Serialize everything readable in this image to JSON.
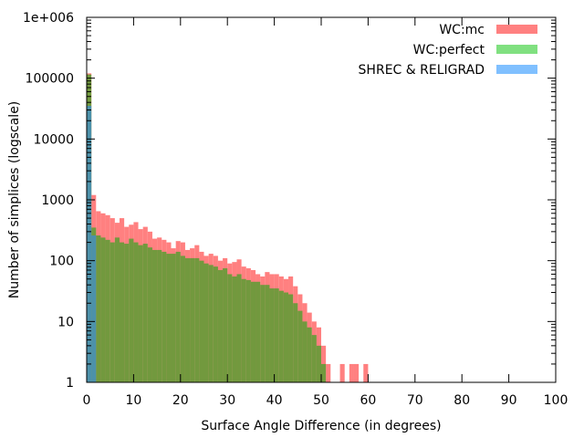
{
  "chart_data": {
    "type": "bar",
    "xlabel": "Surface Angle Difference (in degrees)",
    "ylabel": "Number of simplices (logscale)",
    "xlim": [
      0,
      100
    ],
    "ylim": [
      1,
      1000000
    ],
    "y_scale": "log",
    "x_ticks": [
      "0",
      "10",
      "20",
      "30",
      "40",
      "50",
      "60",
      "70",
      "80",
      "90",
      "100"
    ],
    "y_ticks": [
      "1",
      "10",
      "100",
      "1000",
      "10000",
      "100000",
      "1e+006"
    ],
    "legend_position": "top-right",
    "bin_width_degrees": 1,
    "bin_starts": [
      0,
      1,
      2,
      3,
      4,
      5,
      6,
      7,
      8,
      9,
      10,
      11,
      12,
      13,
      14,
      15,
      16,
      17,
      18,
      19,
      20,
      21,
      22,
      23,
      24,
      25,
      26,
      27,
      28,
      29,
      30,
      31,
      32,
      33,
      34,
      35,
      36,
      37,
      38,
      39,
      40,
      41,
      42,
      43,
      44,
      45,
      46,
      47,
      48,
      49,
      50,
      51,
      52,
      53,
      54,
      55,
      56,
      57,
      58,
      59,
      60,
      61,
      62,
      63,
      64,
      65,
      66,
      67,
      68,
      69,
      70,
      71
    ],
    "series": [
      {
        "name": "WC:mc",
        "color": "#ff8080",
        "values": [
          120000,
          1200,
          650,
          600,
          560,
          500,
          420,
          500,
          360,
          390,
          430,
          330,
          360,
          300,
          230,
          240,
          220,
          200,
          160,
          210,
          200,
          150,
          160,
          180,
          140,
          120,
          130,
          120,
          100,
          110,
          90,
          95,
          105,
          80,
          75,
          70,
          60,
          55,
          65,
          60,
          60,
          55,
          50,
          55,
          38,
          28,
          20,
          14,
          10,
          8,
          4,
          2,
          1,
          1,
          2,
          0,
          2,
          2,
          0,
          2,
          0,
          1,
          0,
          0,
          0,
          1,
          1,
          0,
          0,
          0,
          0,
          1
        ]
      },
      {
        "name": "WC:perfect",
        "color": "#80e080",
        "values": [
          115000,
          350,
          260,
          240,
          220,
          200,
          240,
          200,
          190,
          230,
          200,
          180,
          190,
          165,
          150,
          150,
          140,
          130,
          130,
          140,
          120,
          110,
          110,
          110,
          100,
          90,
          85,
          80,
          70,
          75,
          60,
          55,
          60,
          50,
          48,
          45,
          45,
          40,
          40,
          35,
          35,
          32,
          30,
          28,
          20,
          15,
          10,
          8,
          6,
          4,
          2,
          1,
          1,
          0,
          0,
          0,
          0,
          0,
          0,
          0,
          0,
          0,
          0,
          0,
          0,
          0,
          0,
          0,
          0,
          0,
          0,
          0
        ]
      },
      {
        "name": "SHREC & RELIGRAD",
        "color": "#80c0ff",
        "values": [
          35000,
          260,
          0,
          0,
          0,
          0,
          0,
          0,
          0,
          0,
          0,
          0,
          0,
          0,
          0,
          0,
          0,
          0,
          0,
          0,
          0,
          0,
          0,
          0,
          0,
          0,
          0,
          0,
          0,
          0,
          0,
          0,
          0,
          0,
          0,
          0,
          0,
          0,
          0,
          0,
          0,
          0,
          0,
          0,
          0,
          0,
          0,
          0,
          0,
          0,
          0,
          0,
          0,
          0,
          0,
          0,
          0,
          0,
          0,
          0,
          0,
          0,
          0,
          0,
          0,
          0,
          0,
          0,
          0,
          0,
          0,
          0
        ]
      }
    ]
  }
}
